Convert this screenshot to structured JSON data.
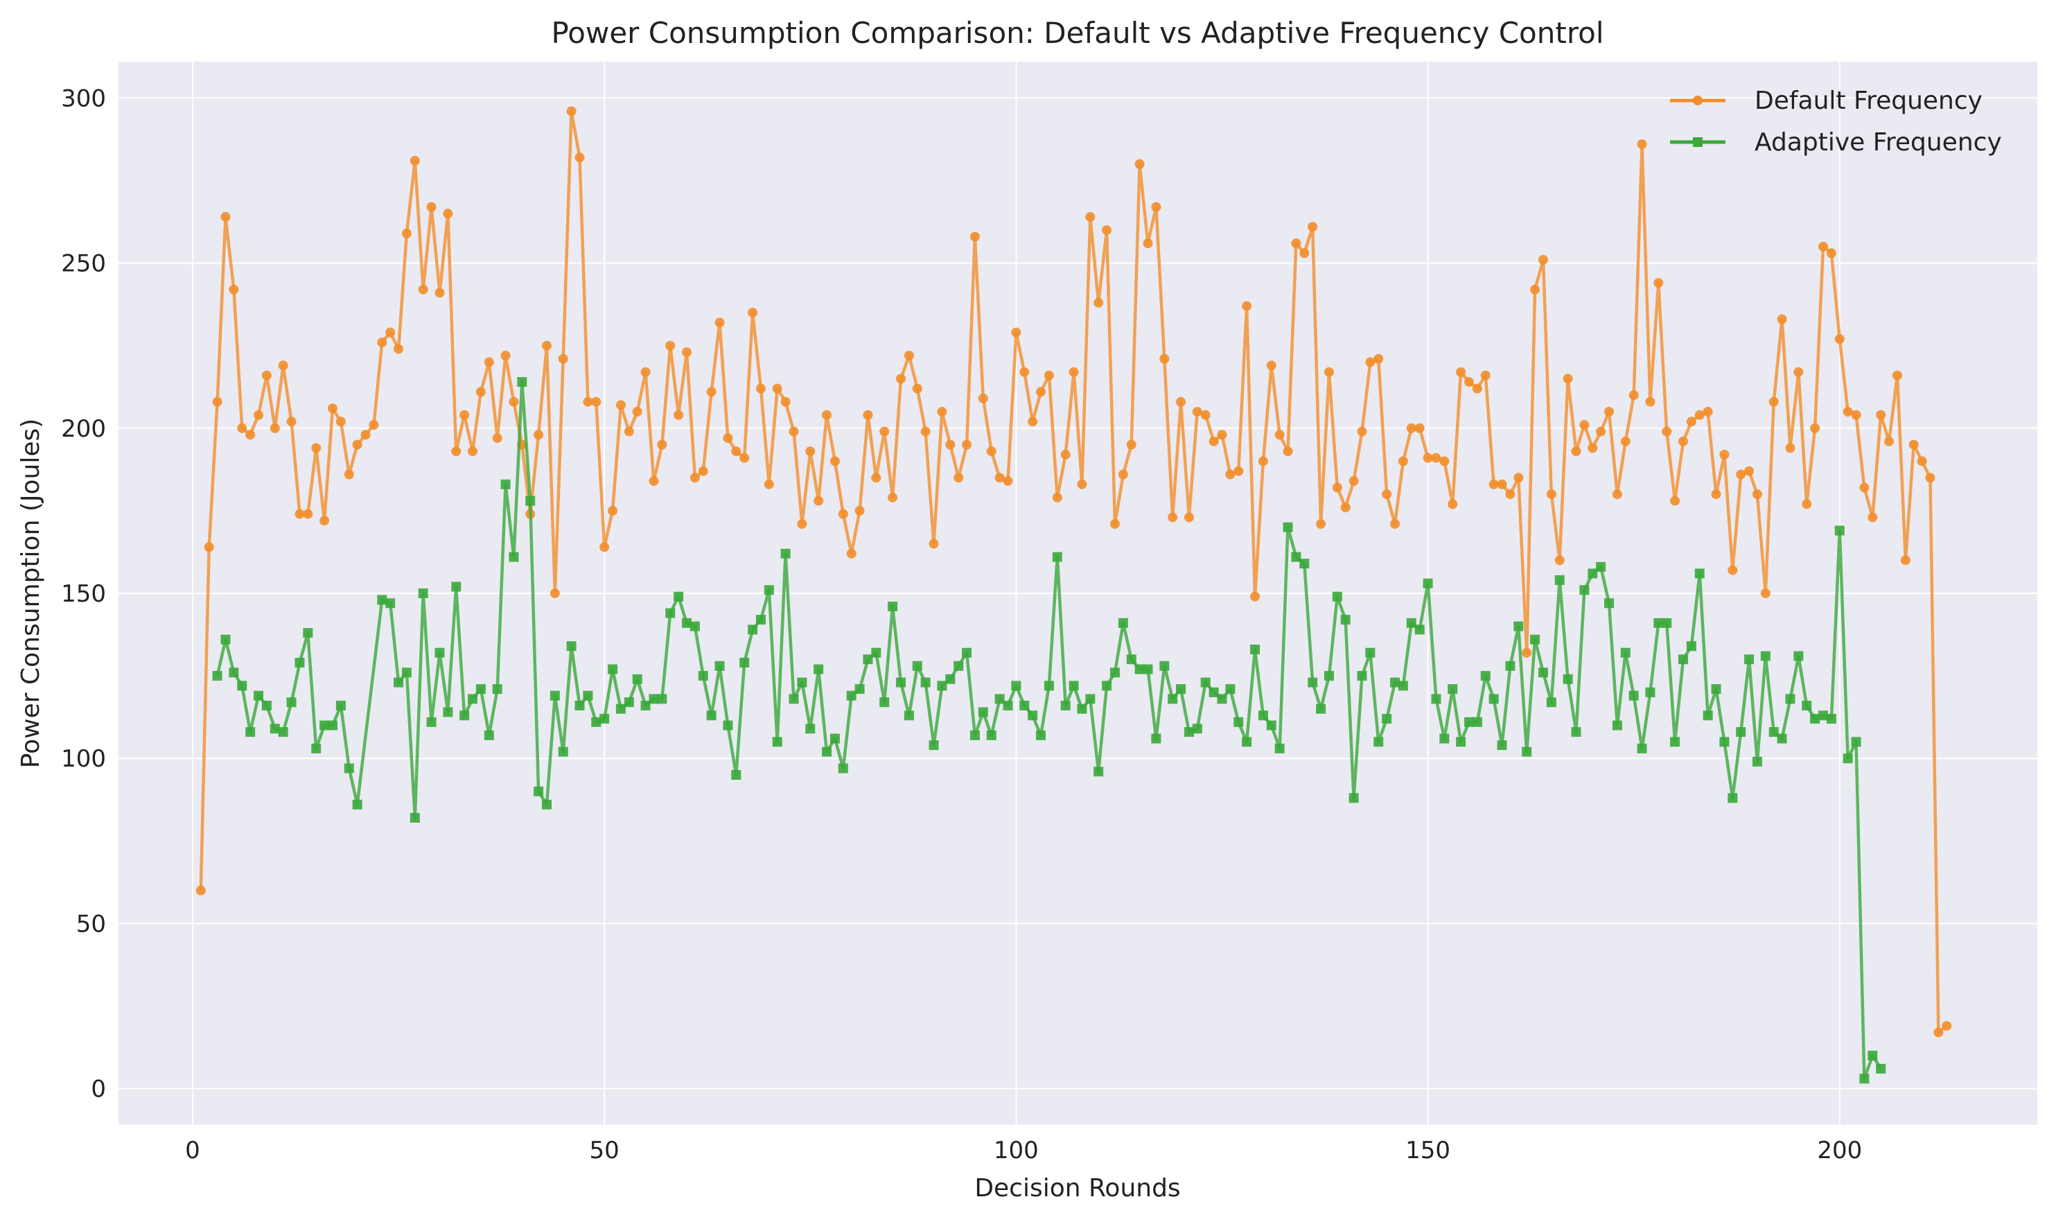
{
  "chart_data": {
    "type": "line",
    "title": "Power Consumption Comparison: Default vs Adaptive Frequency Control",
    "xlabel": "Decision Rounds",
    "ylabel": "Power Consumption (Joules)",
    "xlim": [
      -9,
      224
    ],
    "ylim": [
      -11,
      311
    ],
    "xticks": [
      0,
      50,
      100,
      150,
      200
    ],
    "yticks": [
      0,
      50,
      100,
      150,
      200,
      250,
      300
    ],
    "grid": true,
    "legend_position": "top-right",
    "series": [
      {
        "name": "Default Frequency",
        "color": "#f28e2b",
        "marker": "circle",
        "x": [
          1,
          2,
          3,
          4,
          5,
          6,
          7,
          8,
          9,
          10,
          11,
          12,
          13,
          14,
          15,
          16,
          17,
          18,
          19,
          20,
          21,
          22,
          23,
          24,
          25,
          26,
          27,
          28,
          29,
          30,
          31,
          32,
          33,
          34,
          35,
          36,
          37,
          38,
          39,
          40,
          41,
          42,
          43,
          44,
          45,
          46,
          47,
          48,
          49,
          50,
          51,
          52,
          53,
          54,
          55,
          56,
          57,
          58,
          59,
          60,
          61,
          62,
          63,
          64,
          65,
          66,
          67,
          68,
          69,
          70,
          71,
          72,
          73,
          74,
          75,
          76,
          77,
          78,
          79,
          80,
          81,
          82,
          83,
          84,
          85,
          86,
          87,
          88,
          89,
          90,
          91,
          92,
          93,
          94,
          95,
          96,
          97,
          98,
          99,
          100,
          101,
          102,
          103,
          104,
          105,
          106,
          107,
          108,
          109,
          110,
          111,
          112,
          113,
          114,
          115,
          116,
          117,
          118,
          119,
          120,
          121,
          122,
          123,
          124,
          125,
          126,
          127,
          128,
          129,
          130,
          131,
          132,
          133,
          134,
          135,
          136,
          137,
          138,
          139,
          140,
          141,
          142,
          143,
          144,
          145,
          146,
          147,
          148,
          149,
          150,
          151,
          152,
          153,
          154,
          155,
          156,
          157,
          158,
          159,
          160,
          161,
          162,
          163,
          164,
          165,
          166,
          167,
          168,
          169,
          170,
          171,
          172,
          173,
          174,
          175,
          176,
          177,
          178,
          179,
          180,
          181,
          182,
          183,
          184,
          185,
          186,
          187,
          188,
          189,
          190,
          191,
          192,
          193,
          194,
          195,
          196,
          197,
          198,
          199,
          200,
          201,
          202,
          203,
          204,
          205,
          206,
          207,
          208,
          209,
          210,
          211,
          212,
          213
        ],
        "values": [
          60,
          164,
          208,
          264,
          242,
          200,
          198,
          204,
          216,
          200,
          219,
          202,
          174,
          174,
          194,
          172,
          206,
          202,
          186,
          195,
          198,
          201,
          226,
          229,
          224,
          259,
          281,
          242,
          267,
          241,
          265,
          193,
          204,
          193,
          211,
          220,
          197,
          222,
          208,
          195,
          174,
          198,
          225,
          150,
          221,
          296,
          282,
          208,
          208,
          164,
          175,
          207,
          199,
          205,
          217,
          184,
          195,
          225,
          204,
          223,
          185,
          187,
          211,
          232,
          197,
          193,
          191,
          235,
          212,
          183,
          212,
          208,
          199,
          171,
          193,
          178,
          204,
          190,
          174,
          162,
          175,
          204,
          185,
          199,
          179,
          215,
          222,
          212,
          199,
          165,
          205,
          195,
          185,
          195,
          258,
          209,
          193,
          185,
          184,
          229,
          217,
          202,
          211,
          216,
          179,
          192,
          217,
          183,
          264,
          238,
          260,
          171,
          186,
          195,
          280,
          256,
          267,
          221,
          173,
          208,
          173,
          205,
          204,
          196,
          198,
          186,
          187,
          237,
          149,
          190,
          219,
          198,
          193,
          256,
          253,
          261,
          171,
          217,
          182,
          176,
          184,
          199,
          220,
          221,
          180,
          171,
          190,
          200,
          200,
          191,
          191,
          190,
          177,
          217,
          214,
          212,
          216,
          183,
          183,
          180,
          185,
          132,
          242,
          251,
          180,
          160,
          215,
          193,
          201,
          194,
          199,
          205,
          180,
          196,
          210,
          286,
          208,
          244,
          199,
          178,
          196,
          202,
          204,
          205,
          180,
          192,
          157,
          186,
          187,
          180,
          150,
          208,
          233,
          194,
          217,
          177,
          200,
          255,
          253,
          227,
          205,
          204,
          182,
          173,
          204,
          196,
          216,
          160,
          195,
          190,
          185,
          17,
          19
        ]
      },
      {
        "name": "Adaptive Frequency",
        "color": "#3aa83a",
        "marker": "square",
        "x": [
          3,
          4,
          5,
          6,
          7,
          8,
          9,
          10,
          11,
          12,
          13,
          14,
          15,
          16,
          17,
          18,
          19,
          20,
          23,
          24,
          25,
          26,
          27,
          28,
          29,
          30,
          31,
          32,
          33,
          34,
          35,
          36,
          37,
          38,
          39,
          40,
          41,
          42,
          43,
          44,
          45,
          46,
          47,
          48,
          49,
          50,
          51,
          52,
          53,
          54,
          55,
          56,
          57,
          58,
          59,
          60,
          61,
          62,
          63,
          64,
          65,
          66,
          67,
          68,
          69,
          70,
          71,
          72,
          73,
          74,
          75,
          76,
          77,
          78,
          79,
          80,
          81,
          82,
          83,
          84,
          85,
          86,
          87,
          88,
          89,
          90,
          91,
          92,
          93,
          94,
          95,
          96,
          97,
          98,
          99,
          100,
          101,
          102,
          103,
          104,
          105,
          106,
          107,
          108,
          109,
          110,
          111,
          112,
          113,
          114,
          115,
          116,
          117,
          118,
          119,
          120,
          121,
          122,
          123,
          124,
          125,
          126,
          127,
          128,
          129,
          130,
          131,
          132,
          133,
          134,
          135,
          136,
          137,
          138,
          139,
          140,
          141,
          142,
          143,
          144,
          145,
          146,
          147,
          148,
          149,
          150,
          151,
          152,
          153,
          154,
          155,
          156,
          157,
          158,
          159,
          160,
          161,
          162,
          163,
          164,
          165,
          166,
          167,
          168,
          169,
          170,
          171,
          172,
          173,
          174,
          175,
          176,
          177,
          178,
          179,
          180,
          181,
          182,
          183,
          184,
          185,
          186,
          187,
          188,
          189,
          190,
          191,
          192,
          193,
          194,
          195,
          196,
          197,
          198,
          199,
          200,
          201,
          202,
          203,
          204,
          205
        ],
        "values": [
          125,
          136,
          126,
          122,
          108,
          119,
          116,
          109,
          108,
          117,
          129,
          138,
          103,
          110,
          110,
          116,
          97,
          86,
          148,
          147,
          123,
          126,
          82,
          150,
          111,
          132,
          114,
          152,
          113,
          118,
          121,
          107,
          121,
          183,
          161,
          214,
          178,
          90,
          86,
          119,
          102,
          134,
          116,
          119,
          111,
          112,
          127,
          115,
          117,
          124,
          116,
          118,
          118,
          144,
          149,
          141,
          140,
          125,
          113,
          128,
          110,
          95,
          129,
          139,
          142,
          151,
          105,
          162,
          118,
          123,
          109,
          127,
          102,
          106,
          97,
          119,
          121,
          130,
          132,
          117,
          146,
          123,
          113,
          128,
          123,
          104,
          122,
          124,
          128,
          132,
          107,
          114,
          107,
          118,
          116,
          122,
          116,
          113,
          107,
          122,
          161,
          116,
          122,
          115,
          118,
          96,
          122,
          126,
          141,
          130,
          127,
          127,
          106,
          128,
          118,
          121,
          108,
          109,
          123,
          120,
          118,
          121,
          111,
          105,
          133,
          113,
          110,
          103,
          170,
          161,
          159,
          123,
          115,
          125,
          149,
          142,
          88,
          125,
          132,
          105,
          112,
          123,
          122,
          141,
          139,
          153,
          118,
          106,
          121,
          105,
          111,
          111,
          125,
          118,
          104,
          128,
          140,
          102,
          136,
          126,
          117,
          154,
          124,
          108,
          151,
          156,
          158,
          147,
          110,
          132,
          119,
          103,
          120,
          141,
          141,
          105,
          130,
          134,
          156,
          113,
          121,
          105,
          88,
          108,
          130,
          99,
          131,
          108,
          106,
          118,
          131,
          116,
          112,
          113,
          112,
          169,
          100,
          105,
          3,
          10,
          6
        ]
      }
    ]
  }
}
